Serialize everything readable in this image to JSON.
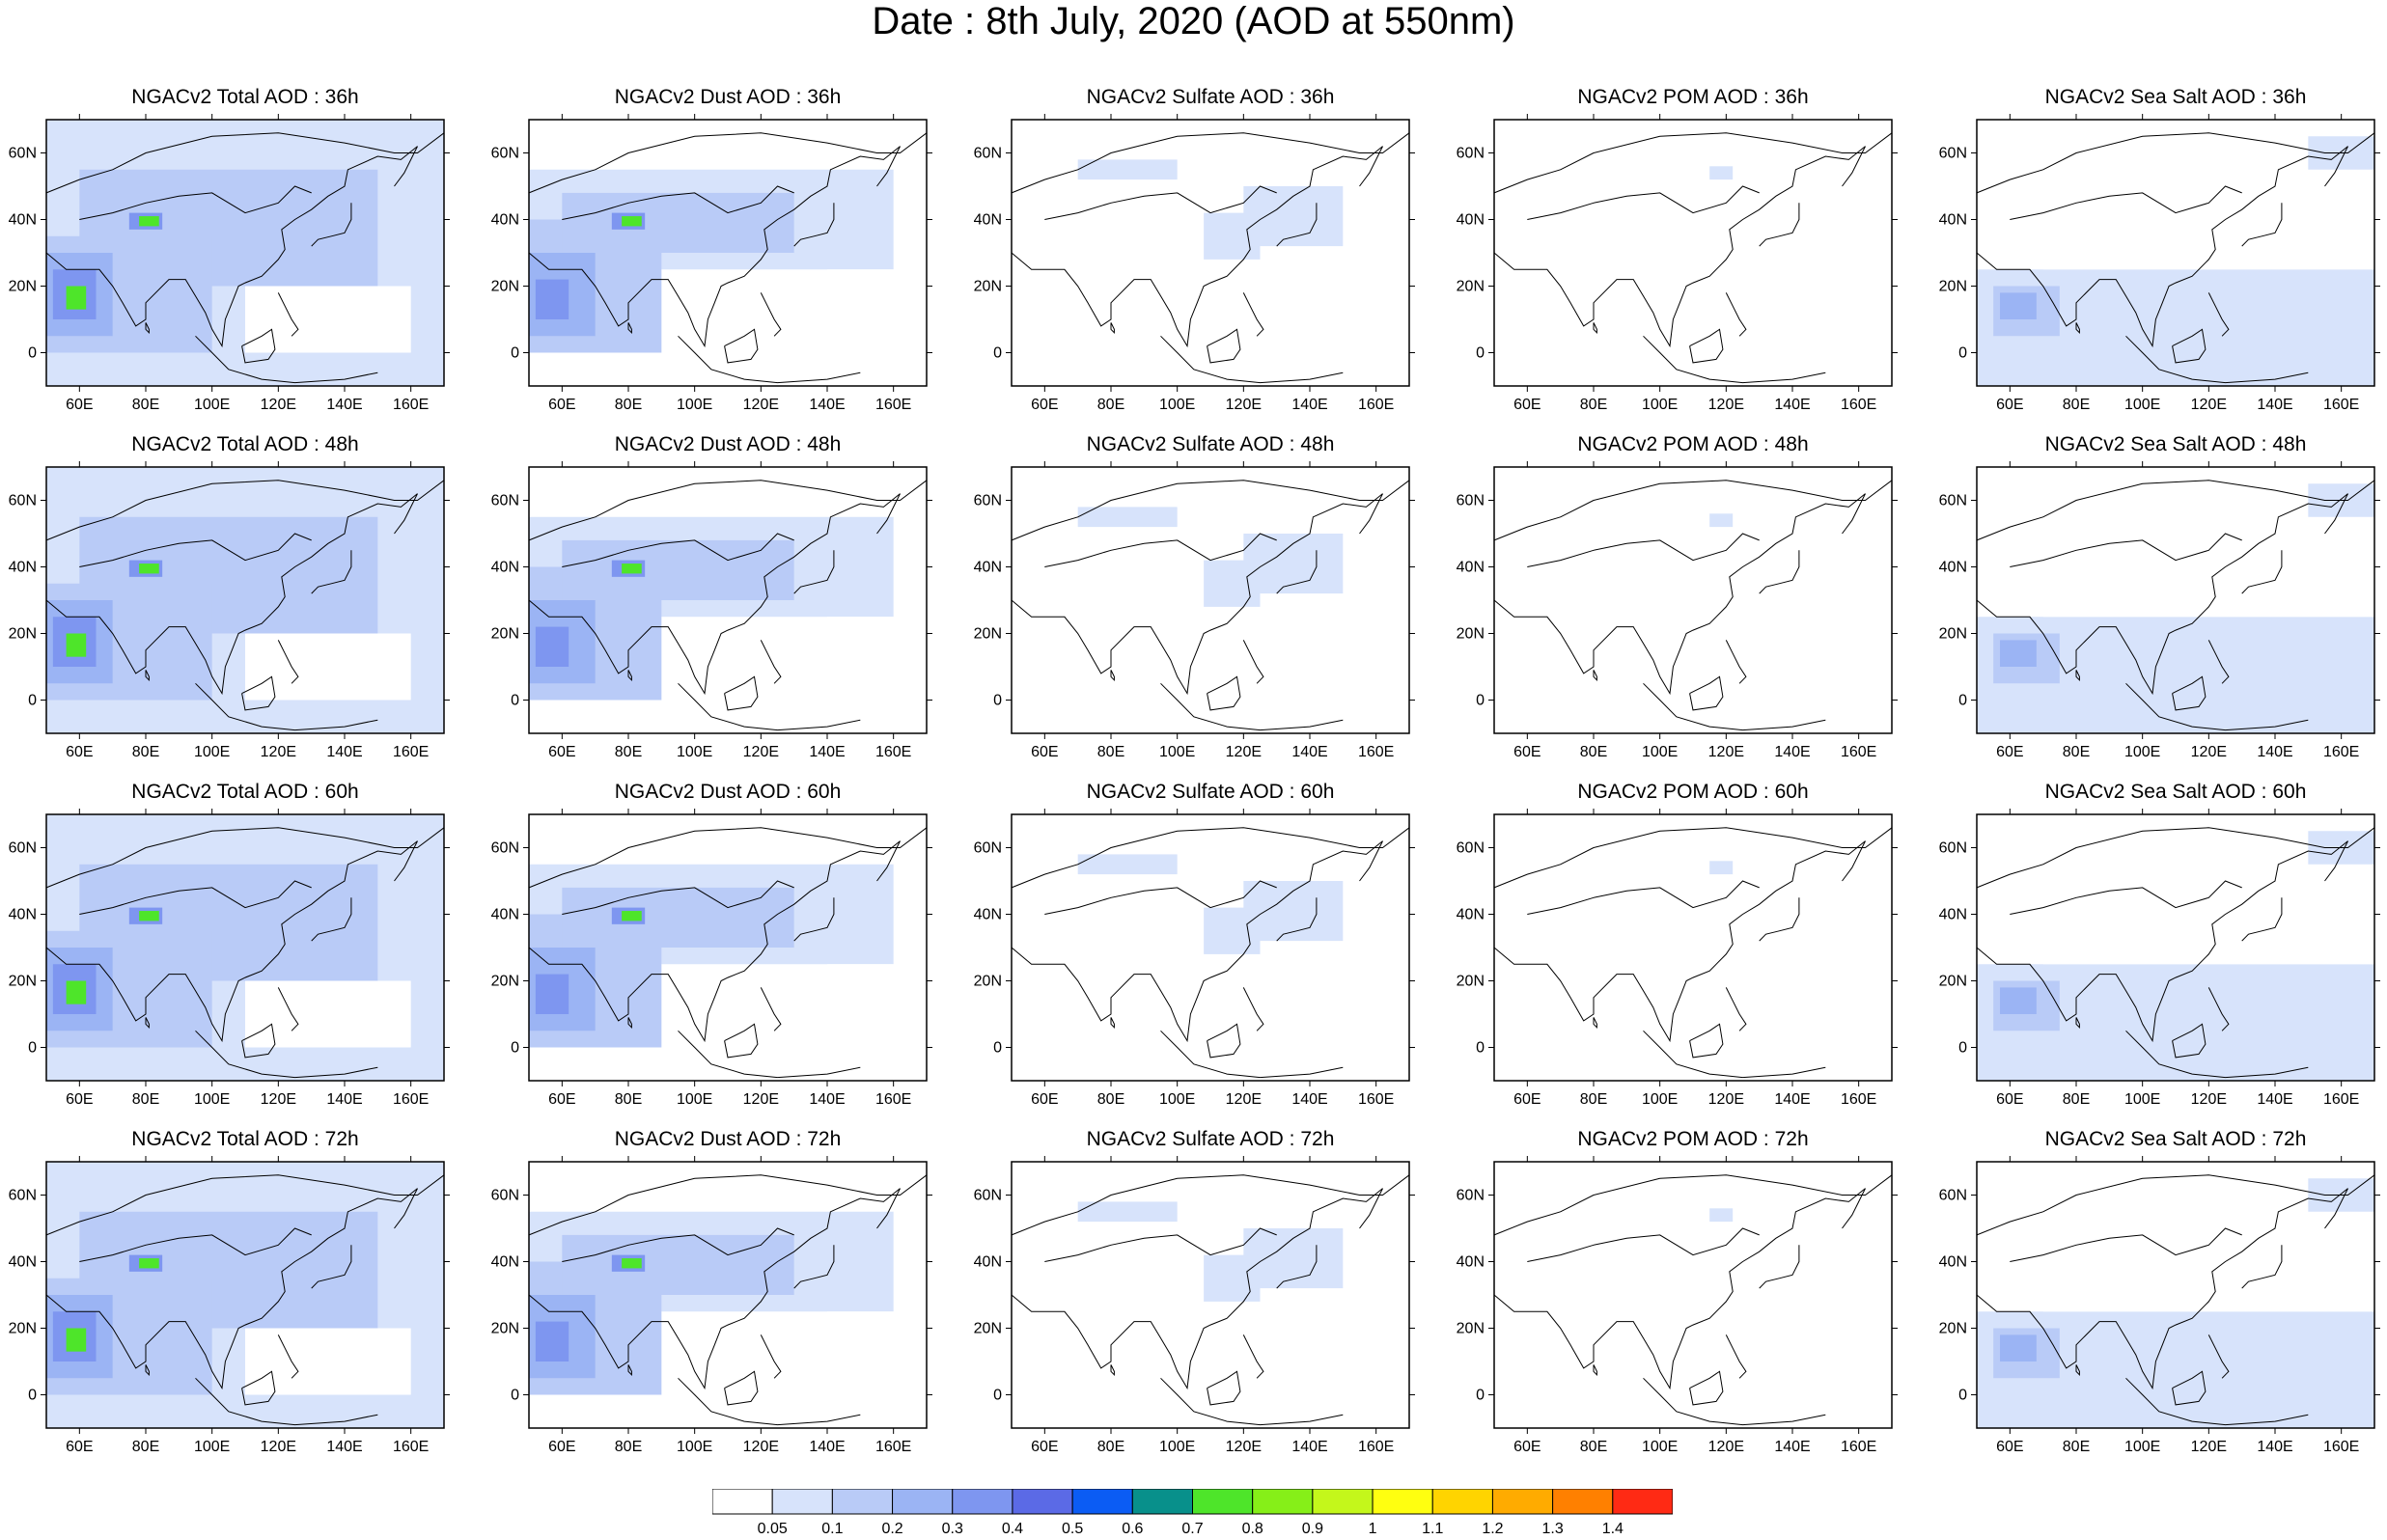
{
  "title": "Date : 8th July, 2020 (AOD at 550nm)",
  "species": [
    "Total",
    "Dust",
    "Sulfate",
    "POM",
    "Sea Salt"
  ],
  "panel_titles": [
    [
      "NGACv2 Total AOD : 36h",
      "NGACv2 Dust AOD : 36h",
      "NGACv2 Sulfate AOD : 36h",
      "NGACv2 POM AOD : 36h",
      "NGACv2 Sea Salt AOD : 36h"
    ],
    [
      "NGACv2 Total AOD : 48h",
      "NGACv2 Dust AOD : 48h",
      "NGACv2 Sulfate AOD : 48h",
      "NGACv2 POM AOD : 48h",
      "NGACv2 Sea Salt AOD : 48h"
    ],
    [
      "NGACv2 Total AOD : 60h",
      "NGACv2 Dust AOD : 60h",
      "NGACv2 Sulfate AOD : 60h",
      "NGACv2 POM AOD : 60h",
      "NGACv2 Sea Salt AOD : 60h"
    ],
    [
      "NGACv2 Total AOD : 72h",
      "NGACv2 Dust AOD : 72h",
      "NGACv2 Sulfate AOD : 72h",
      "NGACv2 POM AOD : 72h",
      "NGACv2 Sea Salt  AOD : 72h"
    ]
  ],
  "map_extent": {
    "lon": [
      50,
      170
    ],
    "lat": [
      -10,
      70
    ]
  },
  "lat_ticks": [
    "60N",
    "40N",
    "20N",
    "0"
  ],
  "lat_tick_values": [
    60,
    40,
    20,
    0
  ],
  "lon_ticks": [
    "60E",
    "80E",
    "100E",
    "120E",
    "140E",
    "160E"
  ],
  "lon_tick_values": [
    60,
    80,
    100,
    120,
    140,
    160
  ],
  "colorbar": {
    "labels": [
      "0.05",
      "0.1",
      "0.2",
      "0.3",
      "0.4",
      "0.5",
      "0.6",
      "0.7",
      "0.8",
      "0.9",
      "1",
      "1.1",
      "1.2",
      "1.3",
      "1.4"
    ],
    "colors": [
      "#ffffff",
      "#d7e3fb",
      "#b9cbf7",
      "#9bb4f4",
      "#7e96f0",
      "#5b6ae6",
      "#0b5cf4",
      "#08908b",
      "#4ee52a",
      "#86ef18",
      "#c4f71b",
      "#ffff10",
      "#ffd400",
      "#ffab00",
      "#ff8000",
      "#ff2a14"
    ]
  },
  "fields": {
    "Total": [
      {
        "x": [
          50,
          170,
          -10,
          70
        ],
        "c": 1
      },
      {
        "x": [
          60,
          150,
          20,
          55
        ],
        "c": 2
      },
      {
        "x": [
          50,
          100,
          0,
          35
        ],
        "c": 2
      },
      {
        "x": [
          50,
          70,
          5,
          30
        ],
        "c": 3
      },
      {
        "x": [
          52,
          65,
          10,
          25
        ],
        "c": 4
      },
      {
        "x": [
          56,
          62,
          13,
          20
        ],
        "c": 8
      },
      {
        "x": [
          75,
          85,
          37,
          42
        ],
        "c": 4
      },
      {
        "x": [
          78,
          84,
          38,
          41
        ],
        "c": 8
      },
      {
        "x": [
          110,
          160,
          0,
          20
        ],
        "c": 0
      }
    ],
    "Dust": [
      {
        "x": [
          50,
          160,
          25,
          55
        ],
        "c": 1
      },
      {
        "x": [
          50,
          90,
          0,
          40
        ],
        "c": 2
      },
      {
        "x": [
          50,
          70,
          5,
          30
        ],
        "c": 3
      },
      {
        "x": [
          52,
          62,
          10,
          22
        ],
        "c": 4
      },
      {
        "x": [
          60,
          130,
          30,
          48
        ],
        "c": 2
      },
      {
        "x": [
          75,
          85,
          37,
          42
        ],
        "c": 4
      },
      {
        "x": [
          78,
          84,
          38,
          41
        ],
        "c": 8
      },
      {
        "x": [
          140,
          170,
          -10,
          25
        ],
        "c": 0
      }
    ],
    "Sulfate": [
      {
        "x": [
          108,
          125,
          28,
          42
        ],
        "c": 1
      },
      {
        "x": [
          120,
          150,
          32,
          50
        ],
        "c": 1
      },
      {
        "x": [
          70,
          100,
          52,
          58
        ],
        "c": 1
      }
    ],
    "POM": [
      {
        "x": [
          115,
          122,
          52,
          56
        ],
        "c": 1
      }
    ],
    "Sea Salt": [
      {
        "x": [
          50,
          170,
          -10,
          25
        ],
        "c": 1
      },
      {
        "x": [
          55,
          75,
          5,
          20
        ],
        "c": 2
      },
      {
        "x": [
          57,
          68,
          10,
          18
        ],
        "c": 3
      },
      {
        "x": [
          70,
          170,
          25,
          70
        ],
        "c": 0
      },
      {
        "x": [
          150,
          170,
          55,
          65
        ],
        "c": 1
      }
    ]
  }
}
